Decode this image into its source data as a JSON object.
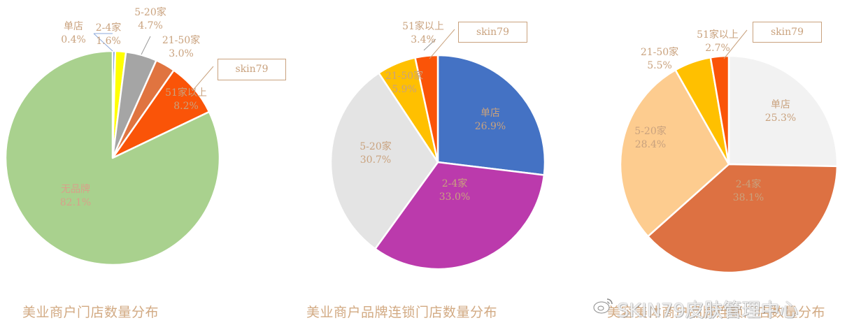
{
  "brand_box_label": "skin79",
  "watermark": "SKIN79皮肤管理中心",
  "chart_data": [
    {
      "type": "pie",
      "title": "美业商户门店数量分布",
      "categories": [
        "单店",
        "2-4家",
        "5-20家",
        "21-50家",
        "51家以上",
        "无品牌"
      ],
      "values": [
        0.4,
        1.6,
        4.7,
        3.0,
        8.2,
        82.1
      ],
      "value_labels": [
        "0.4%",
        "1.6%",
        "4.7%",
        "3.0%",
        "8.2%",
        "82.1%"
      ],
      "colors": [
        "#4472c4",
        "#ffff00",
        "#a5a5a5",
        "#e07440",
        "#fa5408",
        "#a9d18e"
      ],
      "start_angle": "12 o'clock, clockwise"
    },
    {
      "type": "pie",
      "title": "美业商户品牌连锁门店数量分布",
      "categories": [
        "单店",
        "2-4家",
        "5-20家",
        "21-50家",
        "51家以上"
      ],
      "values": [
        26.9,
        33.0,
        30.7,
        5.9,
        3.4
      ],
      "value_labels": [
        "26.9%",
        "33.0%",
        "30.7%",
        "5.9%",
        "3.4%"
      ],
      "colors": [
        "#4472c4",
        "#bb3aac",
        "#e4e4e4",
        "#ffc000",
        "#fa5408"
      ],
      "start_angle": "12 o'clock, clockwise"
    },
    {
      "type": "pie",
      "title": "美容美体商户品牌连锁门店数量分布",
      "categories": [
        "单店",
        "2-4家",
        "5-20家",
        "21-50家",
        "51家以上"
      ],
      "values": [
        25.3,
        38.1,
        28.4,
        5.5,
        2.7
      ],
      "value_labels": [
        "25.3%",
        "38.1%",
        "28.4%",
        "5.5%",
        "2.7%"
      ],
      "colors": [
        "#f2f2f2",
        "#dd7142",
        "#fdcc8f",
        "#ffc000",
        "#fa5408"
      ],
      "start_angle": "12 o'clock, clockwise"
    }
  ],
  "charts": [
    {
      "title": "美业商户门店数量分布",
      "labels": [
        {
          "name": "单店",
          "pct": "0.4%"
        },
        {
          "name": "2-4家",
          "pct": "1.6%"
        },
        {
          "name": "5-20家",
          "pct": "4.7%"
        },
        {
          "name": "21-50家",
          "pct": "3.0%"
        },
        {
          "name": "51家以上",
          "pct": "8.2%"
        },
        {
          "name": "无品牌",
          "pct": "82.1%"
        }
      ]
    },
    {
      "title": "美业商户品牌连锁门店数量分布",
      "labels": [
        {
          "name": "单店",
          "pct": "26.9%"
        },
        {
          "name": "2-4家",
          "pct": "33.0%"
        },
        {
          "name": "5-20家",
          "pct": "30.7%"
        },
        {
          "name": "21-50家",
          "pct": "5.9%"
        },
        {
          "name": "51家以上",
          "pct": "3.4%"
        }
      ]
    },
    {
      "title": "美容美体商户品牌连锁门店数量分布",
      "labels": [
        {
          "name": "单店",
          "pct": "25.3%"
        },
        {
          "name": "2-4家",
          "pct": "38.1%"
        },
        {
          "name": "5-20家",
          "pct": "28.4%"
        },
        {
          "name": "21-50家",
          "pct": "5.5%"
        },
        {
          "name": "51家以上",
          "pct": "2.7%"
        }
      ]
    }
  ]
}
